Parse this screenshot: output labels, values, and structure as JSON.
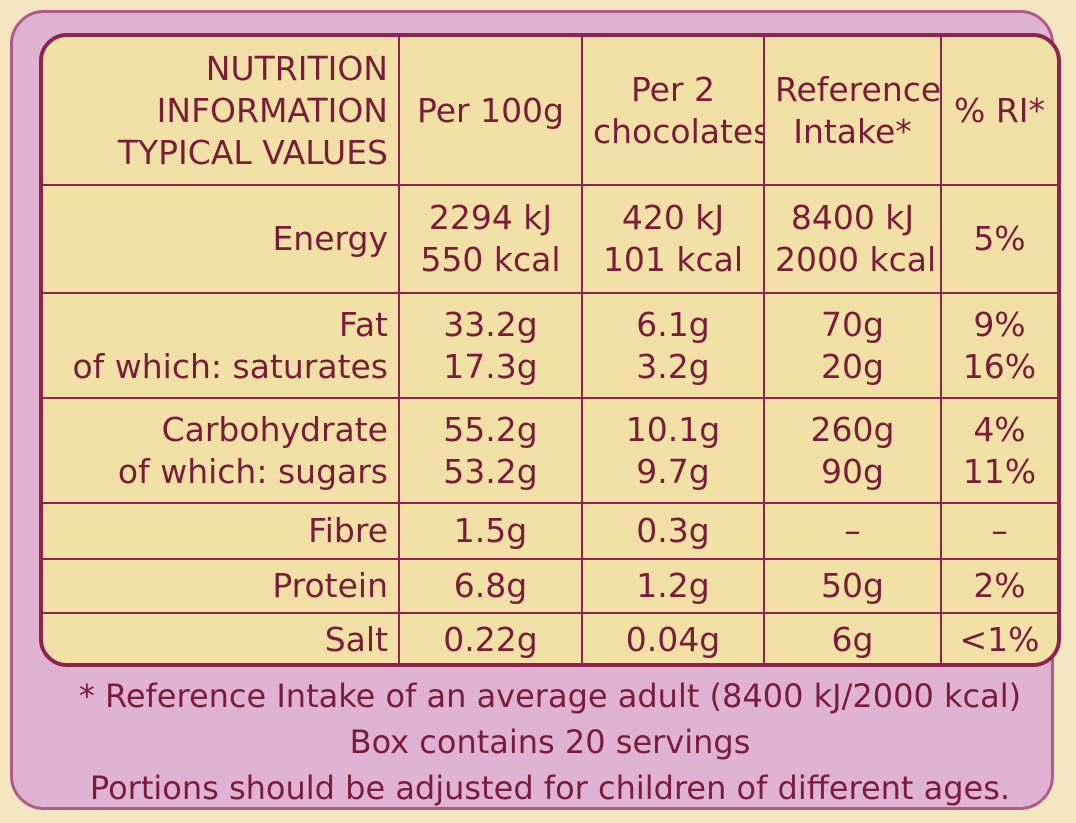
{
  "header": {
    "title_lines": [
      "NUTRITION",
      "INFORMATION",
      "TYPICAL VALUES"
    ],
    "col_per100_lines": [
      "Per 100g"
    ],
    "col_per2_lines": [
      "Per 2",
      "chocolates"
    ],
    "col_ri_lines": [
      "Reference",
      "Intake*"
    ],
    "col_pct_lines": [
      "% RI*"
    ]
  },
  "rows": {
    "energy": {
      "label": [
        "Energy"
      ],
      "per100": [
        "2294 kJ",
        "550 kcal"
      ],
      "per2": [
        "420 kJ",
        "101 kcal"
      ],
      "ri": [
        "8400 kJ",
        "2000 kcal"
      ],
      "pct": [
        "5%"
      ]
    },
    "fat": {
      "label": [
        "Fat",
        "of which: saturates"
      ],
      "per100": [
        "33.2g",
        "17.3g"
      ],
      "per2": [
        "6.1g",
        "3.2g"
      ],
      "ri": [
        "70g",
        "20g"
      ],
      "pct": [
        "9%",
        "16%"
      ]
    },
    "carb": {
      "label": [
        "Carbohydrate",
        "of which: sugars"
      ],
      "per100": [
        "55.2g",
        "53.2g"
      ],
      "per2": [
        "10.1g",
        "9.7g"
      ],
      "ri": [
        "260g",
        "90g"
      ],
      "pct": [
        "4%",
        "11%"
      ]
    },
    "fibre": {
      "label": [
        "Fibre"
      ],
      "per100": [
        "1.5g"
      ],
      "per2": [
        "0.3g"
      ],
      "ri": [
        "–"
      ],
      "pct": [
        "–"
      ]
    },
    "protein": {
      "label": [
        "Protein"
      ],
      "per100": [
        "6.8g"
      ],
      "per2": [
        "1.2g"
      ],
      "ri": [
        "50g"
      ],
      "pct": [
        "2%"
      ]
    },
    "salt": {
      "label": [
        "Salt"
      ],
      "per100": [
        "0.22g"
      ],
      "per2": [
        "0.04g"
      ],
      "ri": [
        "6g"
      ],
      "pct": [
        "<1%"
      ]
    }
  },
  "footer": {
    "line1": "* Reference Intake of an average adult (8400 kJ/2000 kcal)",
    "line2": "Box contains 20 servings",
    "line3": "Portions should be adjusted for children of different ages."
  },
  "colors": {
    "panel_bg": "#e0b3d2",
    "table_bg": "#f2e1a6",
    "border": "#8e2350",
    "text": "#7a1c3a"
  }
}
